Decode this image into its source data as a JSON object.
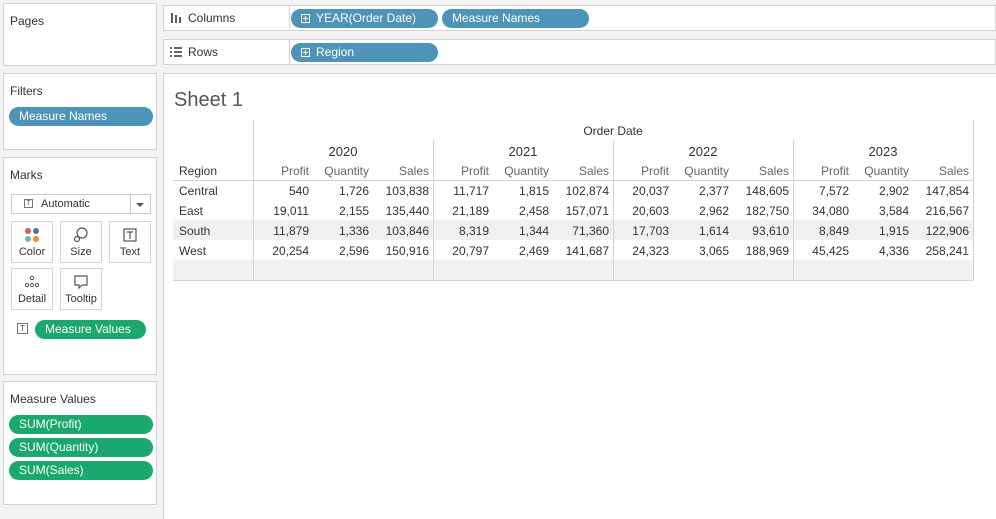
{
  "pages_panel": {
    "title": "Pages"
  },
  "filters_panel": {
    "title": "Filters",
    "pills": [
      "Measure Names"
    ]
  },
  "marks_panel": {
    "title": "Marks",
    "mark_type": "Automatic",
    "buttons": {
      "color": "Color",
      "size": "Size",
      "text": "Text",
      "detail": "Detail",
      "tooltip": "Tooltip"
    },
    "text_pill": "Measure Values"
  },
  "measure_values_panel": {
    "title": "Measure Values",
    "pills": [
      "SUM(Profit)",
      "SUM(Quantity)",
      "SUM(Sales)"
    ]
  },
  "columns_shelf": {
    "label": "Columns",
    "pills": [
      "YEAR(Order Date)",
      "Measure Names"
    ]
  },
  "rows_shelf": {
    "label": "Rows",
    "pills": [
      "Region"
    ]
  },
  "sheet": {
    "title": "Sheet 1",
    "column_group_title": "Order Date",
    "row_header": "Region",
    "years": [
      "2020",
      "2021",
      "2022",
      "2023"
    ],
    "measures": [
      "Profit",
      "Quantity",
      "Sales"
    ],
    "rows": [
      {
        "region": "Central",
        "values": [
          "540",
          "1,726",
          "103,838",
          "11,717",
          "1,815",
          "102,874",
          "20,037",
          "2,377",
          "148,605",
          "7,572",
          "2,902",
          "147,854"
        ]
      },
      {
        "region": "East",
        "values": [
          "19,011",
          "2,155",
          "135,440",
          "21,189",
          "2,458",
          "157,071",
          "20,603",
          "2,962",
          "182,750",
          "34,080",
          "3,584",
          "216,567"
        ]
      },
      {
        "region": "South",
        "values": [
          "11,879",
          "1,336",
          "103,846",
          "8,319",
          "1,344",
          "71,360",
          "17,703",
          "1,614",
          "93,610",
          "8,849",
          "1,915",
          "122,906"
        ]
      },
      {
        "region": "West",
        "values": [
          "20,254",
          "2,596",
          "150,916",
          "20,797",
          "2,469",
          "141,687",
          "24,323",
          "3,065",
          "188,969",
          "45,425",
          "4,336",
          "258,241"
        ]
      }
    ]
  },
  "colors": {
    "blue_pill": "#4d94b8",
    "green_pill": "#1aa86e",
    "band": "#f0f0f0"
  }
}
